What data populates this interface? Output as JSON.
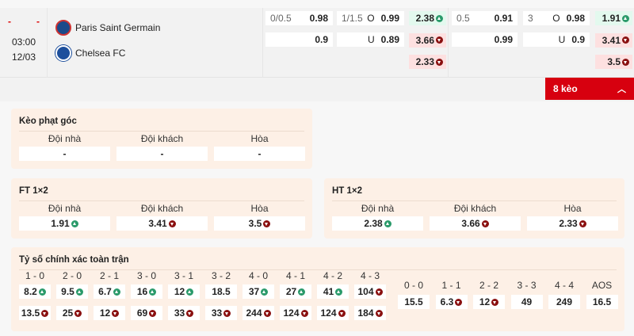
{
  "match": {
    "home_score": "-",
    "away_score": "-",
    "time": "03:00",
    "date": "12/03",
    "home": "Paris Saint Germain",
    "away": "Chelsea FC"
  },
  "odds": {
    "hcap_ft": {
      "line": "0/0.5",
      "home": "0.98",
      "away": "0.9"
    },
    "ou_ft": {
      "line": "1/1.5",
      "over_label": "O",
      "over": "0.99",
      "under_label": "U",
      "under": "0.89"
    },
    "x12_ht": [
      {
        "v": "2.38",
        "t": "up"
      },
      {
        "v": "3.66",
        "t": "down"
      },
      {
        "v": "2.33",
        "t": "down"
      }
    ],
    "hcap_ht": {
      "line": "0.5",
      "home": "0.91",
      "away": "0.99"
    },
    "ou_ht": {
      "line": "3",
      "over_label": "O",
      "over": "0.98",
      "under_label": "U",
      "under": "0.9"
    },
    "x12_ft": [
      {
        "v": "1.91",
        "t": "up"
      },
      {
        "v": "3.41",
        "t": "down"
      },
      {
        "v": "3.5",
        "t": "down"
      }
    ]
  },
  "more_button": "8 kèo",
  "corner": {
    "title": "Kèo phạt góc",
    "labels": [
      "Đội nhà",
      "Đội khách",
      "Hòa"
    ],
    "values": [
      "-",
      "-",
      "-"
    ]
  },
  "ft": {
    "title": "FT 1×2",
    "labels": [
      "Đội nhà",
      "Đội khách",
      "Hòa"
    ],
    "values": [
      {
        "v": "1.91",
        "t": "up"
      },
      {
        "v": "3.41",
        "t": "down"
      },
      {
        "v": "3.5",
        "t": "down"
      }
    ]
  },
  "ht": {
    "title": "HT 1×2",
    "labels": [
      "Đội nhà",
      "Đội khách",
      "Hòa"
    ],
    "values": [
      {
        "v": "2.38",
        "t": "up"
      },
      {
        "v": "3.66",
        "t": "down"
      },
      {
        "v": "2.33",
        "t": "down"
      }
    ]
  },
  "correct_score": {
    "title": "Tỷ số chính xác toàn trận",
    "scores": [
      {
        "s": "1 - 0",
        "home": {
          "v": "8.2",
          "t": "up"
        },
        "away": {
          "v": "13.5",
          "t": "down"
        }
      },
      {
        "s": "2 - 0",
        "home": {
          "v": "9.5",
          "t": "up"
        },
        "away": {
          "v": "25",
          "t": "down"
        }
      },
      {
        "s": "2 - 1",
        "home": {
          "v": "6.7",
          "t": "up"
        },
        "away": {
          "v": "12",
          "t": "down"
        }
      },
      {
        "s": "3 - 0",
        "home": {
          "v": "16",
          "t": "up"
        },
        "away": {
          "v": "69",
          "t": "down"
        }
      },
      {
        "s": "3 - 1",
        "home": {
          "v": "12",
          "t": "up"
        },
        "away": {
          "v": "33",
          "t": "down"
        }
      },
      {
        "s": "3 - 2",
        "home": {
          "v": "18.5",
          "t": ""
        },
        "away": {
          "v": "33",
          "t": "down"
        }
      },
      {
        "s": "4 - 0",
        "home": {
          "v": "37",
          "t": "up"
        },
        "away": {
          "v": "244",
          "t": "down"
        }
      },
      {
        "s": "4 - 1",
        "home": {
          "v": "27",
          "t": "up"
        },
        "away": {
          "v": "124",
          "t": "down"
        }
      },
      {
        "s": "4 - 2",
        "home": {
          "v": "41",
          "t": "up"
        },
        "away": {
          "v": "124",
          "t": "down"
        }
      },
      {
        "s": "4 - 3",
        "home": {
          "v": "104",
          "t": "down"
        },
        "away": {
          "v": "184",
          "t": "down"
        }
      }
    ],
    "draws": [
      {
        "s": "0 - 0",
        "v": "15.5",
        "t": ""
      },
      {
        "s": "1 - 1",
        "v": "6.3",
        "t": "down"
      },
      {
        "s": "2 - 2",
        "v": "12",
        "t": "down"
      },
      {
        "s": "3 - 3",
        "v": "49",
        "t": ""
      },
      {
        "s": "4 - 4",
        "v": "249",
        "t": ""
      },
      {
        "s": "AOS",
        "v": "16.5",
        "t": ""
      }
    ]
  },
  "colors": {
    "up_bg": "#e3f9ee",
    "down_bg": "#fde0e0",
    "up_icon": "#2a9a6a",
    "down_icon": "#8a1010",
    "accent": "#d7000f",
    "panel": "#fdf0e6"
  }
}
